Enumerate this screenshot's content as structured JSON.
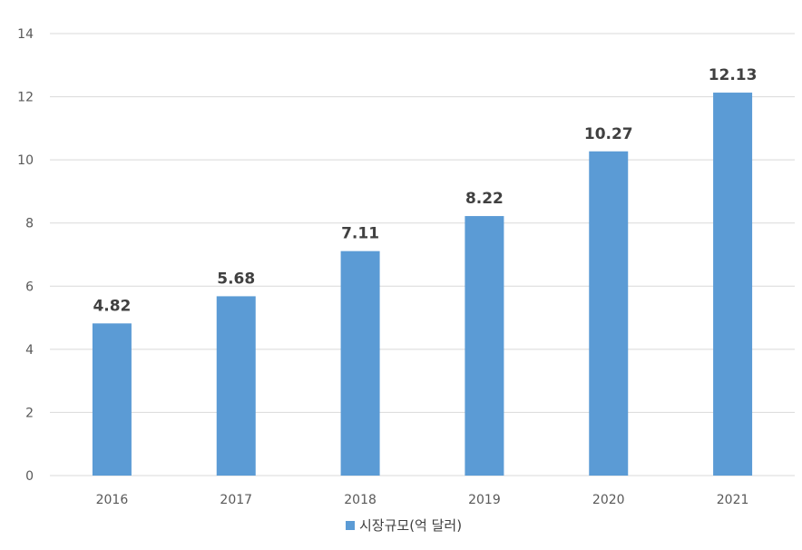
{
  "chart_data": {
    "type": "bar",
    "title": "",
    "xlabel": "",
    "ylabel": "",
    "categories": [
      "2016",
      "2017",
      "2018",
      "2019",
      "2020",
      "2021"
    ],
    "series": [
      {
        "name": "시장규모(억 달러)",
        "values": [
          4.82,
          5.68,
          7.11,
          8.22,
          10.27,
          12.13
        ],
        "color": "#5b9bd5"
      }
    ],
    "data_labels": [
      "4.82",
      "5.68",
      "7.11",
      "8.22",
      "10.27",
      "12.13"
    ],
    "ylim": [
      0,
      14
    ],
    "yticks": [
      0,
      2,
      4,
      6,
      8,
      10,
      12,
      14
    ],
    "grid": true,
    "legend_position": "bottom"
  }
}
